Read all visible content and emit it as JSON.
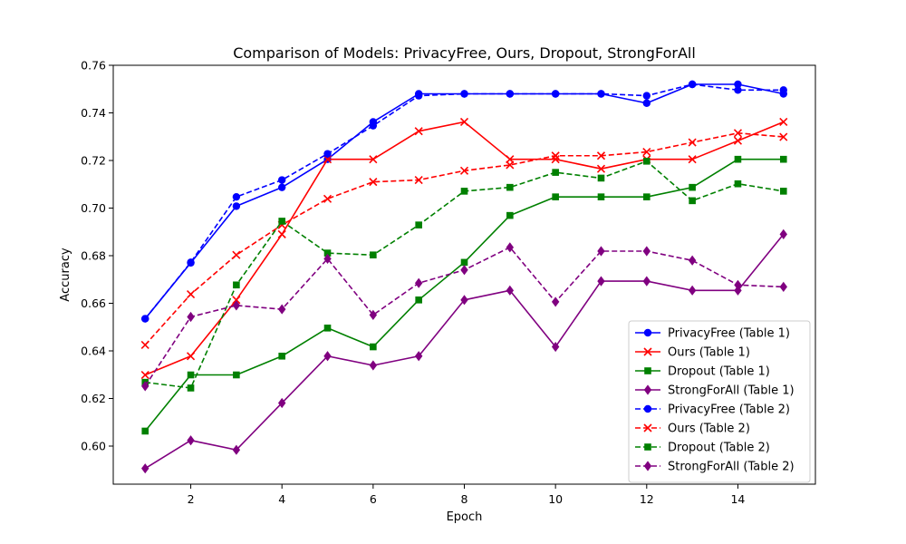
{
  "chart_data": {
    "type": "line",
    "title": "Comparison of Models: PrivacyFree, Ours, Dropout, StrongForAll",
    "xlabel": "Epoch",
    "ylabel": "Accuracy",
    "xlim": [
      0.3,
      15.7
    ],
    "ylim": [
      0.584,
      0.76
    ],
    "xticks": [
      2,
      4,
      6,
      8,
      10,
      12,
      14
    ],
    "yticks": [
      0.6,
      0.62,
      0.64,
      0.66,
      0.68,
      0.7,
      0.72,
      0.74,
      0.76
    ],
    "x": [
      1,
      2,
      3,
      4,
      5,
      6,
      7,
      8,
      9,
      10,
      11,
      12,
      13,
      14,
      15
    ],
    "legend_position": "lower-right",
    "grid": false,
    "series": [
      {
        "name": "PrivacyFree (Table 1)",
        "color": "#0000ff",
        "dash": "solid",
        "marker": "circle",
        "values": [
          0.6535,
          0.677,
          0.7008,
          0.7087,
          0.7205,
          0.7362,
          0.748,
          0.748,
          0.748,
          0.748,
          0.748,
          0.7441,
          0.752,
          0.752,
          0.748
        ]
      },
      {
        "name": "Ours (Table 1)",
        "color": "#ff0000",
        "dash": "solid",
        "marker": "x",
        "values": [
          0.6299,
          0.6378,
          0.6614,
          0.689,
          0.7205,
          0.7205,
          0.7323,
          0.7362,
          0.7205,
          0.7205,
          0.7165,
          0.7205,
          0.7205,
          0.7283,
          0.7362
        ]
      },
      {
        "name": "Dropout (Table 1)",
        "color": "#008000",
        "dash": "solid",
        "marker": "square",
        "values": [
          0.6063,
          0.6299,
          0.6299,
          0.6378,
          0.6496,
          0.6417,
          0.6614,
          0.6772,
          0.6969,
          0.7047,
          0.7047,
          0.7047,
          0.7087,
          0.7205,
          0.7205
        ]
      },
      {
        "name": "StrongForAll (Table 1)",
        "color": "#800080",
        "dash": "solid",
        "marker": "diamond",
        "values": [
          0.5906,
          0.6024,
          0.5984,
          0.6181,
          0.6378,
          0.6339,
          0.6378,
          0.6614,
          0.6654,
          0.6417,
          0.6693,
          0.6693,
          0.6654,
          0.6654,
          0.689
        ]
      },
      {
        "name": "PrivacyFree (Table 2)",
        "color": "#0000ff",
        "dash": "dashed",
        "marker": "circle",
        "values": [
          0.6535,
          0.6772,
          0.7047,
          0.7118,
          0.7228,
          0.7346,
          0.7472,
          0.748,
          0.748,
          0.748,
          0.748,
          0.7472,
          0.752,
          0.7496,
          0.7496
        ]
      },
      {
        "name": "Ours (Table 2)",
        "color": "#ff0000",
        "dash": "dashed",
        "marker": "x",
        "values": [
          0.6425,
          0.6638,
          0.6803,
          0.6929,
          0.7039,
          0.711,
          0.7118,
          0.7157,
          0.7181,
          0.722,
          0.722,
          0.7236,
          0.7276,
          0.7315,
          0.7299
        ]
      },
      {
        "name": "Dropout (Table 2)",
        "color": "#008000",
        "dash": "dashed",
        "marker": "square",
        "values": [
          0.6268,
          0.6244,
          0.6677,
          0.6945,
          0.6811,
          0.6803,
          0.6929,
          0.7071,
          0.7087,
          0.715,
          0.7126,
          0.7197,
          0.7031,
          0.7102,
          0.7071
        ]
      },
      {
        "name": "StrongForAll (Table 2)",
        "color": "#800080",
        "dash": "dashed",
        "marker": "diamond",
        "values": [
          0.6252,
          0.6543,
          0.6591,
          0.6575,
          0.6787,
          0.6551,
          0.6685,
          0.674,
          0.6835,
          0.6606,
          0.6819,
          0.6819,
          0.678,
          0.6677,
          0.6669
        ]
      }
    ]
  }
}
